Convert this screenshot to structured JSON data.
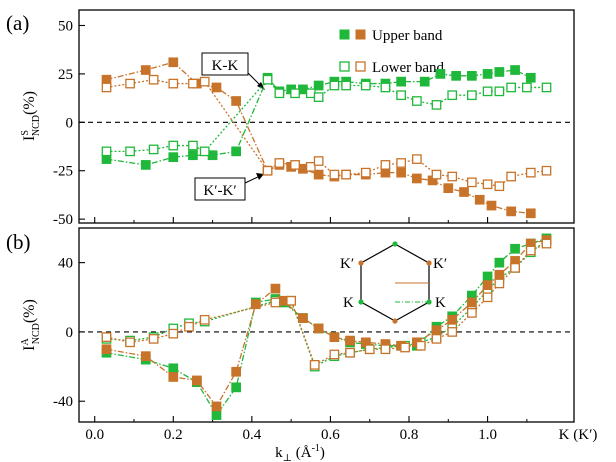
{
  "colors": {
    "upper": "#1fb83a",
    "lower": "#c8732a",
    "axis": "#000000"
  },
  "legend": {
    "upper": "Upper band",
    "lower": "Lower band"
  },
  "panels": [
    {
      "label": "(a)",
      "ylabel": "I",
      "ysup": "S",
      "ysub": "NCD",
      "yunit": "(%)"
    },
    {
      "label": "(b)",
      "ylabel": "I",
      "ysup": "A",
      "ysub": "NCD",
      "yunit": "(%)"
    }
  ],
  "xaxis": {
    "label_main": "k",
    "label_sub": "⊥",
    "label_unit": " (Å",
    "label_exp": "-1",
    "label_close": ")",
    "end_label": "K (K′)"
  },
  "annotations": {
    "kk": "K-K",
    "kpkp": "K′-K′"
  },
  "inset": {
    "top_left": "K′",
    "top_right": "K′",
    "bottom_left": "K",
    "bottom_right": "K"
  },
  "chart_data": [
    {
      "type": "line",
      "panel": "a",
      "ylim": [
        -52,
        58
      ],
      "yticks": [
        -50,
        -25,
        0,
        25,
        50
      ],
      "xlim": [
        -0.04,
        1.22
      ],
      "xticks": [
        0.0,
        0.2,
        0.4,
        0.6,
        0.8,
        1.0
      ],
      "series": [
        {
          "name": "Upper band",
          "color": "#1fb83a",
          "marker": "filled",
          "points": [
            [
              0.03,
              -19
            ],
            [
              0.13,
              -22
            ],
            [
              0.2,
              -18
            ],
            [
              0.25,
              -17
            ],
            [
              0.3,
              -17
            ],
            [
              0.36,
              -15
            ],
            [
              0.44,
              23
            ],
            [
              0.47,
              16
            ],
            [
              0.5,
              17
            ],
            [
              0.53,
              17
            ],
            [
              0.57,
              19
            ],
            [
              0.61,
              21
            ],
            [
              0.64,
              21
            ],
            [
              0.69,
              20
            ],
            [
              0.74,
              20
            ],
            [
              0.78,
              21
            ],
            [
              0.84,
              21
            ],
            [
              0.88,
              25
            ],
            [
              0.92,
              24
            ],
            [
              0.96,
              24
            ],
            [
              1.0,
              25
            ],
            [
              1.03,
              26
            ],
            [
              1.07,
              27
            ],
            [
              1.11,
              23
            ]
          ]
        },
        {
          "name": "Lower band",
          "color": "#1fb83a",
          "marker": "open",
          "points": [
            [
              0.03,
              -15
            ],
            [
              0.09,
              -15
            ],
            [
              0.15,
              -14
            ],
            [
              0.2,
              -12
            ],
            [
              0.25,
              -12
            ],
            [
              0.28,
              -15
            ],
            [
              0.44,
              22
            ],
            [
              0.47,
              15
            ],
            [
              0.51,
              15
            ],
            [
              0.55,
              15
            ],
            [
              0.57,
              13
            ],
            [
              0.61,
              19
            ],
            [
              0.64,
              19
            ],
            [
              0.69,
              19
            ],
            [
              0.74,
              18
            ],
            [
              0.78,
              14
            ],
            [
              0.82,
              11
            ],
            [
              0.87,
              9
            ],
            [
              0.91,
              14
            ],
            [
              0.96,
              14
            ],
            [
              1.0,
              16
            ],
            [
              1.03,
              16
            ],
            [
              1.06,
              18
            ],
            [
              1.1,
              18
            ],
            [
              1.15,
              18
            ]
          ]
        },
        {
          "name": "Upper band",
          "color": "#c8732a",
          "marker": "filled",
          "points": [
            [
              0.03,
              22
            ],
            [
              0.13,
              27
            ],
            [
              0.2,
              31
            ],
            [
              0.26,
              20
            ],
            [
              0.31,
              18
            ],
            [
              0.36,
              11
            ],
            [
              0.44,
              -25
            ],
            [
              0.47,
              -22
            ],
            [
              0.5,
              -23
            ],
            [
              0.53,
              -24
            ],
            [
              0.57,
              -27
            ],
            [
              0.61,
              -28
            ],
            [
              0.64,
              -27
            ],
            [
              0.69,
              -27
            ],
            [
              0.74,
              -26
            ],
            [
              0.78,
              -26
            ],
            [
              0.82,
              -29
            ],
            [
              0.86,
              -30
            ],
            [
              0.9,
              -34
            ],
            [
              0.94,
              -36
            ],
            [
              0.98,
              -40
            ],
            [
              1.01,
              -43
            ],
            [
              1.06,
              -46
            ],
            [
              1.11,
              -47
            ]
          ]
        },
        {
          "name": "Lower band",
          "color": "#c8732a",
          "marker": "open",
          "points": [
            [
              0.03,
              18
            ],
            [
              0.09,
              20
            ],
            [
              0.15,
              22
            ],
            [
              0.2,
              20
            ],
            [
              0.25,
              20
            ],
            [
              0.28,
              21
            ],
            [
              0.44,
              -25
            ],
            [
              0.47,
              -21
            ],
            [
              0.51,
              -22
            ],
            [
              0.55,
              -23
            ],
            [
              0.57,
              -20
            ],
            [
              0.61,
              -27
            ],
            [
              0.64,
              -27
            ],
            [
              0.69,
              -26
            ],
            [
              0.74,
              -22
            ],
            [
              0.78,
              -21
            ],
            [
              0.82,
              -19
            ],
            [
              0.87,
              -27
            ],
            [
              0.91,
              -28
            ],
            [
              0.96,
              -31
            ],
            [
              1.0,
              -32
            ],
            [
              1.03,
              -33
            ],
            [
              1.06,
              -28
            ],
            [
              1.11,
              -26
            ],
            [
              1.15,
              -25
            ]
          ]
        }
      ]
    },
    {
      "type": "line",
      "panel": "b",
      "ylim": [
        -52,
        60
      ],
      "yticks": [
        -40,
        0,
        40
      ],
      "xlim": [
        -0.04,
        1.22
      ],
      "xticks": [
        0.0,
        0.2,
        0.4,
        0.6,
        0.8,
        1.0
      ],
      "series": [
        {
          "name": "Upper band",
          "color": "#1fb83a",
          "marker": "filled",
          "points": [
            [
              0.03,
              -12
            ],
            [
              0.13,
              -16
            ],
            [
              0.2,
              -21
            ],
            [
              0.26,
              -29
            ],
            [
              0.31,
              -48
            ],
            [
              0.36,
              -32
            ],
            [
              0.41,
              17
            ],
            [
              0.46,
              19
            ],
            [
              0.48,
              17
            ],
            [
              0.53,
              8
            ],
            [
              0.57,
              2
            ],
            [
              0.61,
              -3
            ],
            [
              0.65,
              -6
            ],
            [
              0.69,
              -7
            ],
            [
              0.74,
              -8
            ],
            [
              0.78,
              -8
            ],
            [
              0.82,
              -8
            ],
            [
              0.87,
              3
            ],
            [
              0.91,
              9
            ],
            [
              0.96,
              21
            ],
            [
              1.0,
              32
            ],
            [
              1.03,
              40
            ],
            [
              1.07,
              48
            ],
            [
              1.11,
              51
            ],
            [
              1.15,
              54
            ]
          ]
        },
        {
          "name": "Lower band",
          "color": "#1fb83a",
          "marker": "open",
          "points": [
            [
              0.03,
              -4
            ],
            [
              0.09,
              -5
            ],
            [
              0.15,
              -3
            ],
            [
              0.2,
              2
            ],
            [
              0.24,
              5
            ],
            [
              0.28,
              6
            ],
            [
              0.46,
              18
            ],
            [
              0.5,
              18
            ],
            [
              0.56,
              -20
            ],
            [
              0.61,
              -14
            ],
            [
              0.65,
              -12
            ],
            [
              0.7,
              -10
            ],
            [
              0.74,
              -9
            ],
            [
              0.79,
              -8
            ],
            [
              0.83,
              -6
            ],
            [
              0.87,
              -3
            ],
            [
              0.91,
              3
            ],
            [
              0.96,
              14
            ],
            [
              1.0,
              24
            ],
            [
              1.03,
              31
            ],
            [
              1.07,
              37
            ],
            [
              1.11,
              46
            ],
            [
              1.15,
              53
            ]
          ]
        },
        {
          "name": "Upper band",
          "color": "#c8732a",
          "marker": "filled",
          "points": [
            [
              0.03,
              -10
            ],
            [
              0.13,
              -14
            ],
            [
              0.2,
              -26
            ],
            [
              0.26,
              -28
            ],
            [
              0.31,
              -43
            ],
            [
              0.36,
              -23
            ],
            [
              0.41,
              16
            ],
            [
              0.46,
              25
            ],
            [
              0.48,
              18
            ],
            [
              0.53,
              8
            ],
            [
              0.57,
              2
            ],
            [
              0.61,
              -3
            ],
            [
              0.65,
              -5
            ],
            [
              0.69,
              -6
            ],
            [
              0.74,
              -7
            ],
            [
              0.78,
              -8
            ],
            [
              0.82,
              -6
            ],
            [
              0.87,
              1
            ],
            [
              0.91,
              7
            ],
            [
              0.96,
              17
            ],
            [
              1.0,
              27
            ],
            [
              1.03,
              33
            ],
            [
              1.07,
              41
            ],
            [
              1.11,
              51
            ],
            [
              1.15,
              53
            ]
          ]
        },
        {
          "name": "Lower band",
          "color": "#c8732a",
          "marker": "open",
          "points": [
            [
              0.03,
              -3
            ],
            [
              0.09,
              -6
            ],
            [
              0.15,
              -4
            ],
            [
              0.2,
              -1
            ],
            [
              0.24,
              3
            ],
            [
              0.28,
              7
            ],
            [
              0.46,
              17
            ],
            [
              0.5,
              18
            ],
            [
              0.56,
              -19
            ],
            [
              0.61,
              -13
            ],
            [
              0.65,
              -12
            ],
            [
              0.7,
              -10
            ],
            [
              0.74,
              -10
            ],
            [
              0.79,
              -9
            ],
            [
              0.83,
              -8
            ],
            [
              0.87,
              -4
            ],
            [
              0.91,
              0
            ],
            [
              0.96,
              11
            ],
            [
              1.0,
              20
            ],
            [
              1.03,
              28
            ],
            [
              1.07,
              37
            ],
            [
              1.11,
              47
            ],
            [
              1.15,
              51
            ]
          ]
        }
      ]
    }
  ]
}
